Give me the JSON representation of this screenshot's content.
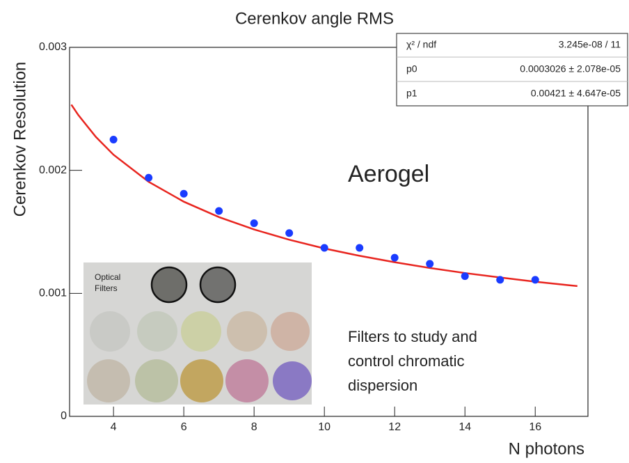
{
  "chart_data": {
    "type": "scatter",
    "title": "Cerenkov angle RMS",
    "x_label": "N photons",
    "y_label": "Cerenkov Resolution",
    "xlim": [
      2.75,
      17.5
    ],
    "ylim": [
      0,
      0.003
    ],
    "xticks": [
      4,
      6,
      8,
      10,
      12,
      14,
      16
    ],
    "yticks": [
      0,
      0.001,
      0.002,
      0.003
    ],
    "points": {
      "color": "#1a3cff",
      "x": [
        4,
        5,
        6,
        7,
        8,
        9,
        10,
        11,
        12,
        13,
        14,
        15,
        16
      ],
      "values": [
        0.00225,
        0.00194,
        0.00181,
        0.00167,
        0.00157,
        0.00149,
        0.00137,
        0.00137,
        0.00129,
        0.00124,
        0.00114,
        0.00111,
        0.00111
      ]
    },
    "fit": {
      "color": "#e8251f",
      "x": [
        2.8,
        3,
        3.5,
        4,
        5,
        6,
        7,
        8,
        9,
        10,
        11,
        12,
        13,
        14,
        15,
        16,
        17,
        17.2
      ],
      "values": [
        0.002534,
        0.002449,
        0.002271,
        0.002127,
        0.001907,
        0.001745,
        0.00162,
        0.001519,
        0.001436,
        0.001365,
        0.001305,
        0.001253,
        0.001206,
        0.001165,
        0.001129,
        0.001095,
        0.001065,
        0.001059
      ]
    },
    "stats": [
      [
        "χ² / ndf",
        "3.245e-08 / 11"
      ],
      [
        "p0",
        "0.0003026 ± 2.078e-05"
      ],
      [
        "p1",
        "0.00421 ± 4.647e-05"
      ]
    ],
    "annotations": [
      "Aerogel",
      "Filters to study and",
      "control chromatic",
      "dispersion"
    ],
    "photo_label": [
      "Optical",
      "Filters"
    ]
  }
}
